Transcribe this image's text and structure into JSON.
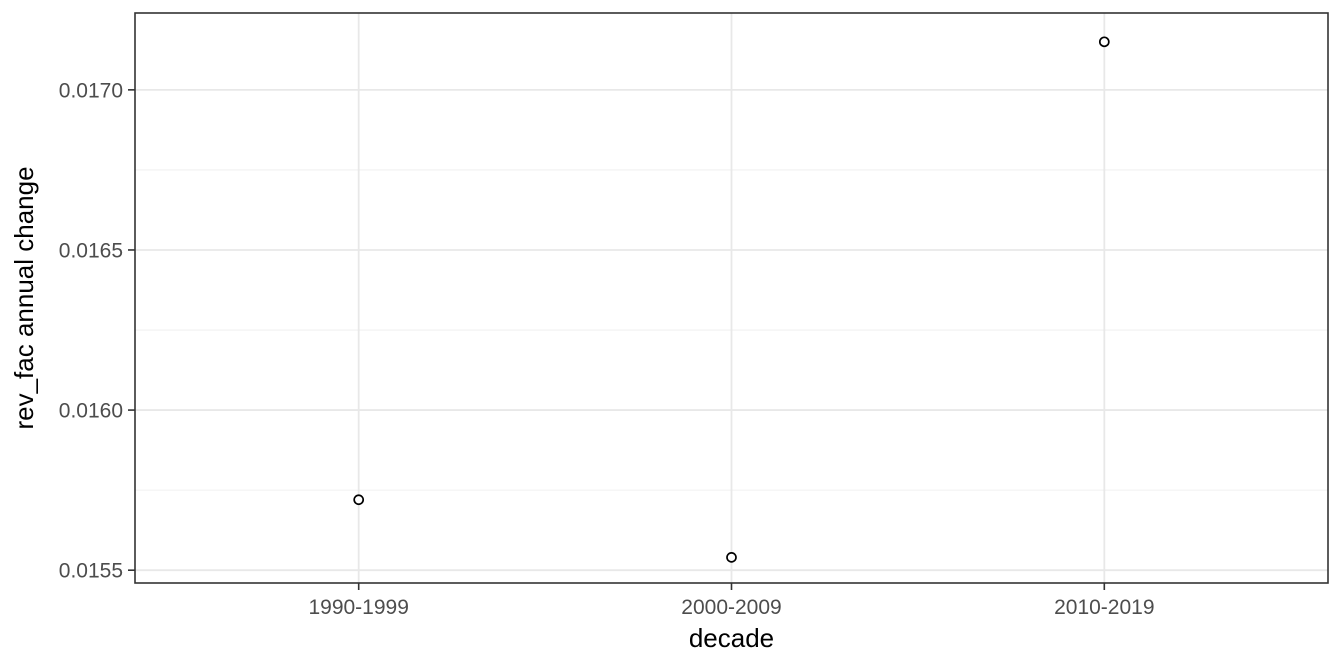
{
  "chart_data": {
    "type": "scatter",
    "title": "",
    "xlabel": "decade",
    "ylabel": "rev_fac annual change",
    "categories": [
      "1990-1999",
      "2000-2009",
      "2010-2019"
    ],
    "series": [
      {
        "name": "rev_fac annual change",
        "values": [
          0.01572,
          0.01554,
          0.01715
        ]
      }
    ],
    "y_ticks": [
      0.0155,
      0.016,
      0.0165,
      0.017
    ],
    "y_tick_labels": [
      "0.0155",
      "0.0160",
      "0.0165",
      "0.0170"
    ],
    "ylim": [
      0.01546,
      0.01724
    ],
    "legend_position": "none",
    "grid": {
      "horizontal_major": true,
      "horizontal_minor": true,
      "vertical_major": true,
      "vertical_minor": false
    },
    "marker": {
      "shape": "open-circle",
      "radius": 4.5,
      "stroke_width": 1.7,
      "stroke_color": "#000000",
      "fill_color": "#FFFFFF"
    },
    "theme": {
      "background": "#FFFFFF",
      "panel_background": "#FFFFFF",
      "panel_border_color": "#333333",
      "grid_major_color": "#E8E8E8",
      "grid_minor_color": "#F0F0F0",
      "tick_mark_color": "#333333",
      "tick_label_color": "#4D4D4D",
      "axis_title_color": "#000000"
    }
  }
}
